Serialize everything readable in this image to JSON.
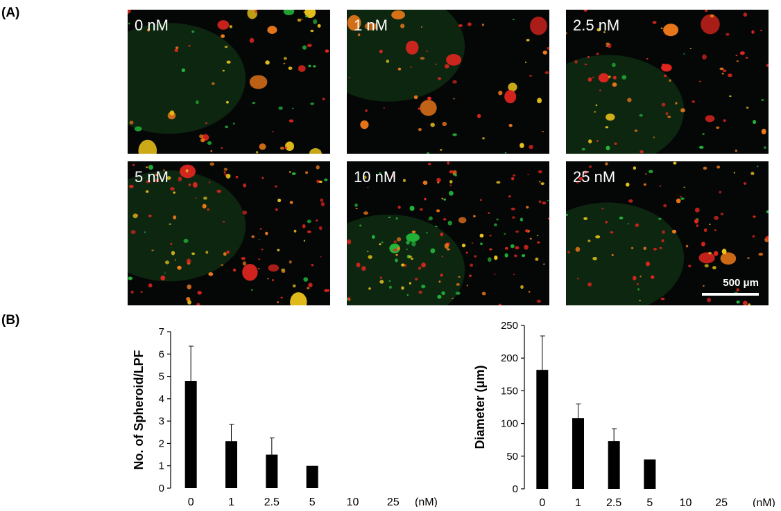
{
  "panel_labels": {
    "a": "(A)",
    "b": "(B)"
  },
  "micrographs": [
    {
      "label": "0 nM"
    },
    {
      "label": "1 nM"
    },
    {
      "label": "2.5 nM"
    },
    {
      "label": "5 nM"
    },
    {
      "label": "10 nM"
    },
    {
      "label": "25 nM"
    }
  ],
  "scale_bar": {
    "label": "500 μm"
  },
  "colors": {
    "bar": "#000000",
    "cell_red": "#e3261f",
    "cell_orange": "#f07a1a",
    "cell_yellow": "#e9c21a",
    "cell_green": "#24b83a",
    "background": "#050707"
  },
  "chart_data": [
    {
      "type": "bar",
      "ylabel": "No. of Spheroid/LPF",
      "xlabel": "",
      "unit_label": "(nM)",
      "categories": [
        "0",
        "1",
        "2.5",
        "5",
        "10",
        "25"
      ],
      "series": [
        {
          "values": [
            4.8,
            2.1,
            1.5,
            1.0,
            0,
            0
          ],
          "errors": [
            1.55,
            0.75,
            0.75,
            0,
            0,
            0
          ]
        }
      ],
      "ylim": [
        0,
        7
      ],
      "yticks": [
        "0",
        "1",
        "2",
        "3",
        "4",
        "5",
        "6",
        "7"
      ],
      "grid": false
    },
    {
      "type": "bar",
      "ylabel": "Diameter (μm)",
      "xlabel": "",
      "unit_label": "(nM)",
      "categories": [
        "0",
        "1",
        "2.5",
        "5",
        "10",
        "25"
      ],
      "series": [
        {
          "values": [
            182,
            108,
            73,
            45,
            0,
            0
          ],
          "errors": [
            52,
            22,
            19,
            0,
            0,
            0
          ]
        }
      ],
      "ylim": [
        0,
        250
      ],
      "yticks": [
        "0",
        "50",
        "100",
        "150",
        "200",
        "250"
      ],
      "grid": false
    }
  ]
}
